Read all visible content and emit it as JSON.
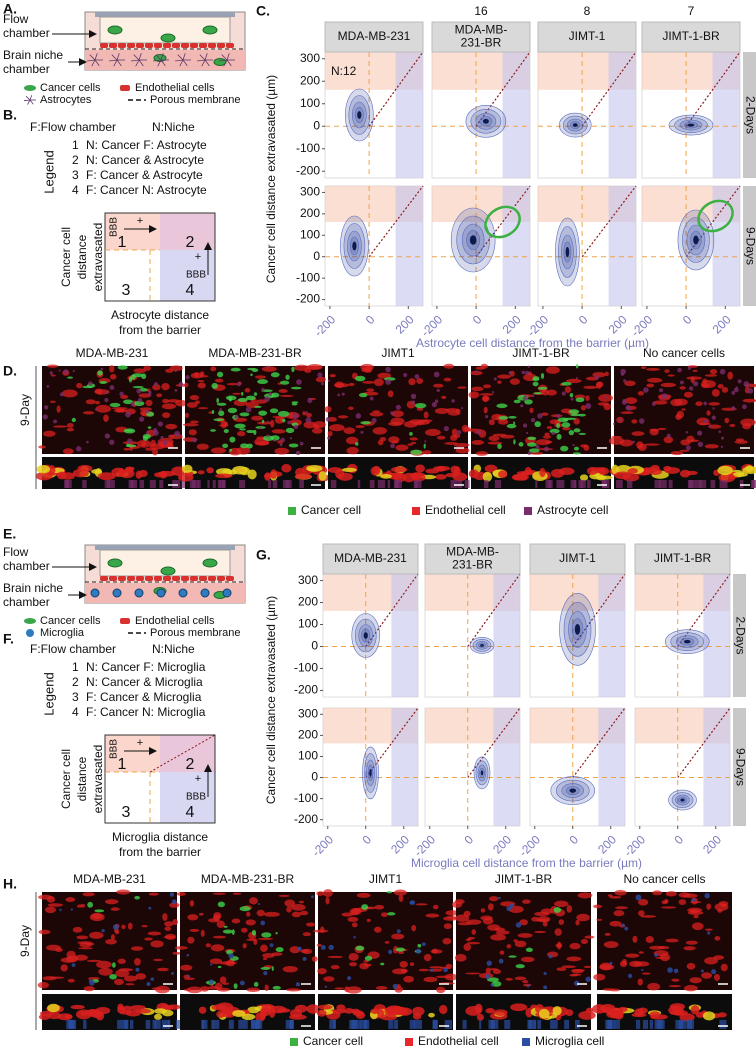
{
  "panel_a": {
    "label": "A.",
    "flow_chamber": [
      "Flow",
      "chamber"
    ],
    "brain_niche_chamber": [
      "Brain niche",
      "chamber"
    ],
    "legend": [
      "Cancer cells",
      "Endothelial cells",
      "Astrocytes",
      "Porous membrane"
    ]
  },
  "panel_b": {
    "label": "B.",
    "flow_chamber_key": "F:Flow chamber",
    "niche_key": "N:Niche",
    "legend_title": "Legend",
    "items": [
      {
        "number": "1",
        "text": "N: Cancer F: Astrocyte"
      },
      {
        "number": "2",
        "text": "N: Cancer & Astrocyte"
      },
      {
        "number": "3",
        "text": "F: Cancer & Astrocyte"
      },
      {
        "number": "4",
        "text": "F: Cancer N: Astrocyte"
      }
    ],
    "quadrants": [
      "1",
      "2",
      "3",
      "4"
    ],
    "barrier": "BBB",
    "plus": "+",
    "y_label": [
      "Cancer cell",
      "distance",
      "extravasated"
    ],
    "x_label": [
      "Astrocyte distance",
      "from the barrier"
    ]
  },
  "panel_c": {
    "label": "C.",
    "columns": [
      [
        "MDA-MB-231"
      ],
      [
        "MDA-MB-",
        "231-BR"
      ],
      [
        "JIMT-1"
      ],
      [
        "JIMT-1-BR"
      ]
    ],
    "counts": [
      "N:12",
      16,
      8,
      7
    ],
    "rows": [
      "2-Days",
      "9-Days"
    ],
    "y_label": "Cancer cell distance extravasated (µm)",
    "x_label": "Astrocyte cell distance from the barrier (µm)",
    "xlim": [
      -225,
      275
    ],
    "xticks": [
      -200,
      0,
      200
    ],
    "ylim": [
      -230,
      330
    ],
    "yticks": [
      -200,
      -100,
      0,
      100,
      200,
      300
    ]
  },
  "panel_d": {
    "label": "D.",
    "columns": [
      "MDA-MB-231",
      "MDA-MB-231-BR",
      "JIMT1",
      "JIMT-1-BR",
      "No cancer cells"
    ],
    "row": "9-Day",
    "legend": [
      "Cancer cell",
      "Endothelial cell",
      "Astrocyte cell"
    ]
  },
  "panel_e": {
    "label": "E.",
    "flow_chamber": [
      "Flow",
      "chamber"
    ],
    "brain_niche_chamber": [
      "Brain niche",
      "chamber"
    ],
    "legend": [
      "Cancer cells",
      "Endothelial cells",
      "Microglia",
      "Porous membrane"
    ]
  },
  "panel_f": {
    "label": "F.",
    "flow_chamber_key": "F:Flow chamber",
    "niche_key": "N:Niche",
    "legend_title": "Legend",
    "items": [
      {
        "number": "1",
        "text": "N: Cancer F: Microglia"
      },
      {
        "number": "2",
        "text": "N: Cancer & Microglia"
      },
      {
        "number": "3",
        "text": "F: Cancer & Microglia"
      },
      {
        "number": "4",
        "text": "F: Cancer N: Microglia"
      }
    ],
    "quadrants": [
      "1",
      "2",
      "3",
      "4"
    ],
    "barrier": "BBB",
    "plus": "+",
    "y_label": [
      "Cancer cell",
      "distance",
      "extravasated"
    ],
    "x_label": [
      "Microglia distance",
      "from the barrier"
    ]
  },
  "panel_g": {
    "label": "G.",
    "columns": [
      [
        "MDA-MB-231"
      ],
      [
        "MDA-MB-",
        "231-BR"
      ],
      [
        "JIMT-1"
      ],
      [
        "JIMT-1-BR"
      ]
    ],
    "rows": [
      "2-Days",
      "9-Days"
    ],
    "y_label": "Cancer cell distance extravasated (µm)",
    "x_label": "Microglia cell distance from the barrier (µm)",
    "xlim": [
      -225,
      275
    ],
    "xticks": [
      -200,
      0,
      200
    ],
    "ylim": [
      -230,
      330
    ],
    "yticks": [
      -200,
      -100,
      0,
      100,
      200,
      300
    ]
  },
  "panel_h": {
    "label": "H.",
    "columns": [
      "MDA-MB-231",
      "MDA-MB-231-BR",
      "JIMT1",
      "JIMT-1-BR",
      "No cancer cells"
    ],
    "row": "9-Day",
    "legend": [
      "Cancer cell",
      "Endothelial cell",
      "Microglia cell"
    ]
  }
}
